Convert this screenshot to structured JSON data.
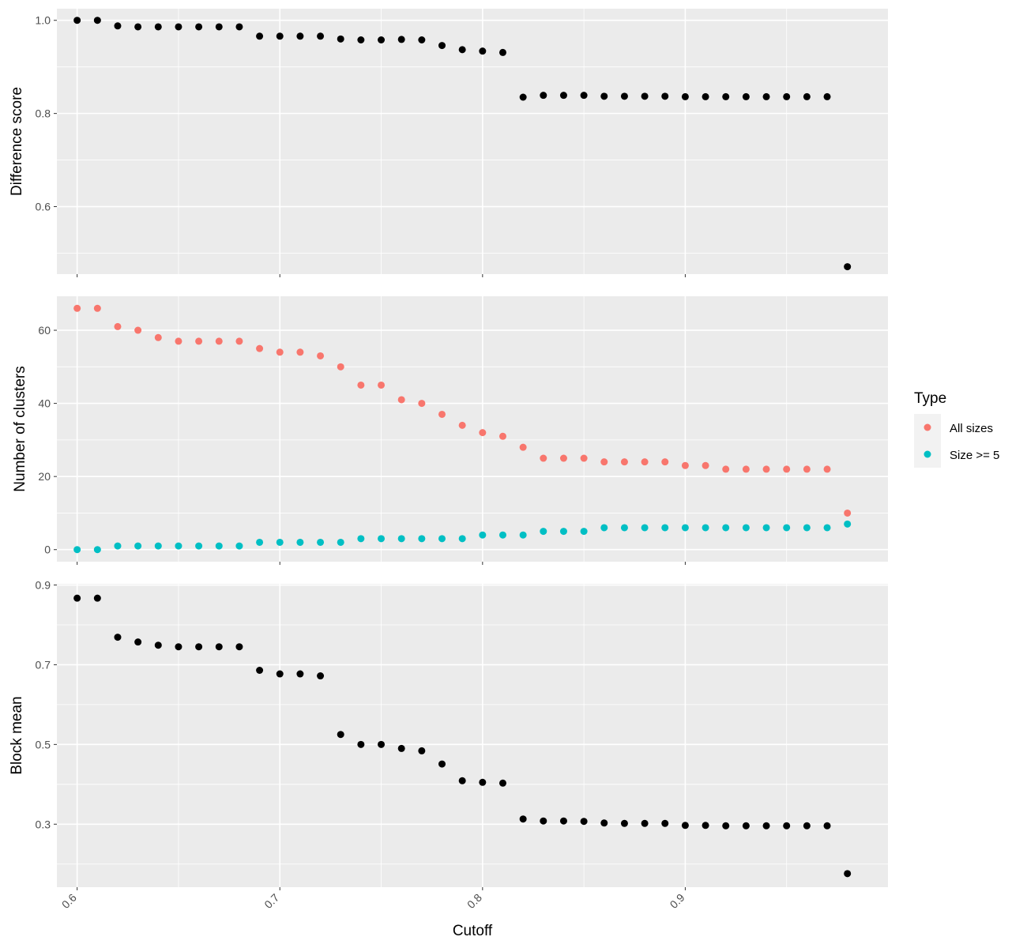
{
  "chart_data": [
    {
      "type": "scatter",
      "panel": "top",
      "xlabel": "",
      "ylabel": "Difference score",
      "xlim": [
        0.59,
        1.0
      ],
      "ylim": [
        0.455,
        1.025
      ],
      "x_ticks": [
        0.6,
        0.7,
        0.8,
        0.9
      ],
      "y_ticks": [
        0.6,
        0.8,
        1.0
      ],
      "y_tick_labels": [
        "0.6",
        "0.8",
        "1.0"
      ],
      "grid": true,
      "series": [
        {
          "color": "#000000",
          "x": [
            0.6,
            0.61,
            0.62,
            0.63,
            0.64,
            0.65,
            0.66,
            0.67,
            0.68,
            0.69,
            0.7,
            0.71,
            0.72,
            0.73,
            0.74,
            0.75,
            0.76,
            0.77,
            0.78,
            0.79,
            0.8,
            0.81,
            0.82,
            0.83,
            0.84,
            0.85,
            0.86,
            0.87,
            0.88,
            0.89,
            0.9,
            0.91,
            0.92,
            0.93,
            0.94,
            0.95,
            0.96,
            0.97,
            0.98
          ],
          "values": [
            1.0,
            1.0,
            0.988,
            0.986,
            0.986,
            0.986,
            0.986,
            0.986,
            0.986,
            0.966,
            0.966,
            0.966,
            0.966,
            0.96,
            0.958,
            0.958,
            0.959,
            0.958,
            0.946,
            0.937,
            0.934,
            0.931,
            0.835,
            0.839,
            0.839,
            0.839,
            0.837,
            0.837,
            0.837,
            0.837,
            0.836,
            0.836,
            0.836,
            0.836,
            0.836,
            0.836,
            0.836,
            0.836,
            0.471
          ]
        }
      ]
    },
    {
      "type": "scatter",
      "panel": "middle",
      "xlabel": "",
      "ylabel": "Number of clusters",
      "xlim": [
        0.59,
        1.0
      ],
      "ylim": [
        -3.3,
        69.3
      ],
      "x_ticks": [
        0.6,
        0.7,
        0.8,
        0.9
      ],
      "y_ticks": [
        0,
        20,
        40,
        60
      ],
      "y_tick_labels": [
        "0",
        "20",
        "40",
        "60"
      ],
      "grid": true,
      "legend_position": "right",
      "series": [
        {
          "name": "All sizes",
          "color": "#F8766D",
          "x": [
            0.6,
            0.61,
            0.62,
            0.63,
            0.64,
            0.65,
            0.66,
            0.67,
            0.68,
            0.69,
            0.7,
            0.71,
            0.72,
            0.73,
            0.74,
            0.75,
            0.76,
            0.77,
            0.78,
            0.79,
            0.8,
            0.81,
            0.82,
            0.83,
            0.84,
            0.85,
            0.86,
            0.87,
            0.88,
            0.89,
            0.9,
            0.91,
            0.92,
            0.93,
            0.94,
            0.95,
            0.96,
            0.97,
            0.98
          ],
          "values": [
            66,
            66,
            61,
            60,
            58,
            57,
            57,
            57,
            57,
            55,
            54,
            54,
            53,
            50,
            45,
            45,
            41,
            40,
            37,
            34,
            32,
            31,
            28,
            25,
            25,
            25,
            24,
            24,
            24,
            24,
            23,
            23,
            22,
            22,
            22,
            22,
            22,
            22,
            10
          ]
        },
        {
          "name": "Size >= 5",
          "color": "#00BFC4",
          "x": [
            0.6,
            0.61,
            0.62,
            0.63,
            0.64,
            0.65,
            0.66,
            0.67,
            0.68,
            0.69,
            0.7,
            0.71,
            0.72,
            0.73,
            0.74,
            0.75,
            0.76,
            0.77,
            0.78,
            0.79,
            0.8,
            0.81,
            0.82,
            0.83,
            0.84,
            0.85,
            0.86,
            0.87,
            0.88,
            0.89,
            0.9,
            0.91,
            0.92,
            0.93,
            0.94,
            0.95,
            0.96,
            0.97,
            0.98
          ],
          "values": [
            0,
            0,
            1,
            1,
            1,
            1,
            1,
            1,
            1,
            2,
            2,
            2,
            2,
            2,
            3,
            3,
            3,
            3,
            3,
            3,
            4,
            4,
            4,
            5,
            5,
            5,
            6,
            6,
            6,
            6,
            6,
            6,
            6,
            6,
            6,
            6,
            6,
            6,
            7
          ]
        }
      ]
    },
    {
      "type": "scatter",
      "panel": "bottom",
      "xlabel": "Cutoff",
      "ylabel": "Block mean",
      "xlim": [
        0.59,
        1.0
      ],
      "ylim": [
        0.142,
        0.903
      ],
      "x_ticks": [
        0.6,
        0.7,
        0.8,
        0.9
      ],
      "x_tick_labels": [
        "0.6",
        "0.7",
        "0.8",
        "0.9"
      ],
      "y_ticks": [
        0.3,
        0.5,
        0.7,
        0.9
      ],
      "y_tick_labels": [
        "0.3",
        "0.5",
        "0.7",
        "0.9"
      ],
      "grid": true,
      "series": [
        {
          "color": "#000000",
          "x": [
            0.6,
            0.61,
            0.62,
            0.63,
            0.64,
            0.65,
            0.66,
            0.67,
            0.68,
            0.69,
            0.7,
            0.71,
            0.72,
            0.73,
            0.74,
            0.75,
            0.76,
            0.77,
            0.78,
            0.79,
            0.8,
            0.81,
            0.82,
            0.83,
            0.84,
            0.85,
            0.86,
            0.87,
            0.88,
            0.89,
            0.9,
            0.91,
            0.92,
            0.93,
            0.94,
            0.95,
            0.96,
            0.97,
            0.98
          ],
          "values": [
            0.867,
            0.867,
            0.769,
            0.757,
            0.749,
            0.745,
            0.745,
            0.745,
            0.745,
            0.686,
            0.677,
            0.677,
            0.672,
            0.525,
            0.5,
            0.5,
            0.49,
            0.484,
            0.451,
            0.409,
            0.405,
            0.403,
            0.313,
            0.308,
            0.308,
            0.307,
            0.303,
            0.302,
            0.302,
            0.302,
            0.297,
            0.297,
            0.296,
            0.296,
            0.296,
            0.296,
            0.296,
            0.296,
            0.176
          ]
        }
      ]
    }
  ],
  "legend": {
    "title": "Type",
    "items": [
      {
        "label": "All sizes",
        "color": "#F8766D"
      },
      {
        "label": "Size >= 5",
        "color": "#00BFC4"
      }
    ]
  },
  "colors": {
    "panel_background": "#EBEBEB",
    "grid_major": "#FFFFFF",
    "point_default": "#000000"
  }
}
